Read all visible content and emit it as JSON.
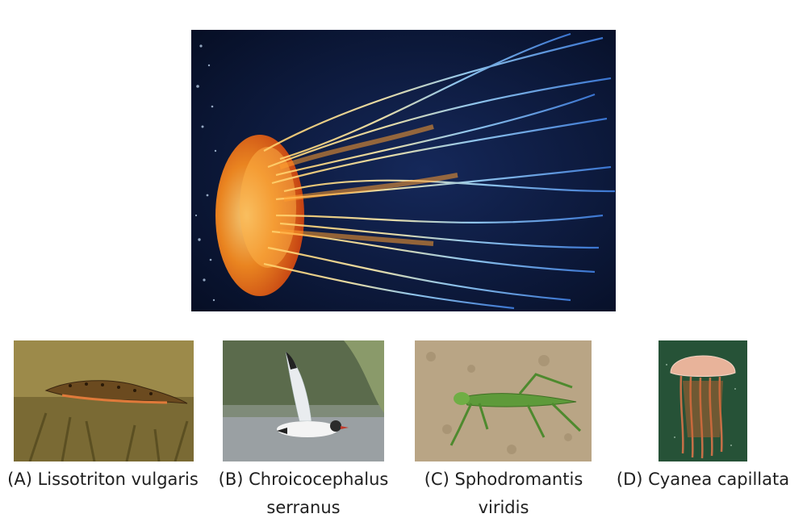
{
  "main_image": {
    "icon": "lions-mane-jellyfish-photo"
  },
  "options": [
    {
      "letter": "(A)",
      "name": "Lissotriton vulgaris",
      "label": "(A) Lissotriton vulgaris",
      "icon": "newt-photo"
    },
    {
      "letter": "(B)",
      "name": "Chroicocephalus serranus",
      "label": "(B) Chroicocephalus serranus",
      "icon": "gull-photo"
    },
    {
      "letter": "(C)",
      "name": "Sphodromantis viridis",
      "label": "(C) Sphodromantis viridis",
      "icon": "mantis-photo"
    },
    {
      "letter": "(D)",
      "name": "Cyanea capillata",
      "label": "(D) Cyanea capillata",
      "icon": "jellyfish-photo"
    }
  ],
  "colors": {
    "caption_text": "#1f1f1f",
    "water_dark": "#0a1838",
    "jelly_orange": "#f08a1c",
    "tentacle_blue": "#6fb6ff"
  }
}
